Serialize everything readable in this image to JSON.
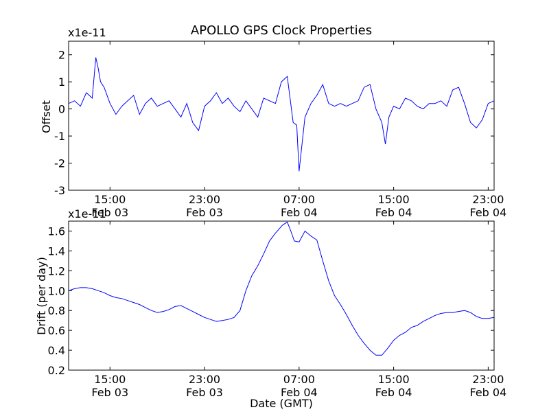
{
  "chart_data": [
    {
      "type": "line",
      "title": "APOLLO GPS Clock Properties",
      "scale_label": "x1e-11",
      "ylabel": "Offset",
      "xlabel": "",
      "x_ticks": [
        {
          "time": "15:00",
          "date": "Feb 03",
          "hours": 15
        },
        {
          "time": "23:00",
          "date": "Feb 03",
          "hours": 23
        },
        {
          "time": "07:00",
          "date": "Feb 04",
          "hours": 31
        },
        {
          "time": "15:00",
          "date": "Feb 04",
          "hours": 39
        },
        {
          "time": "23:00",
          "date": "Feb 04",
          "hours": 47
        }
      ],
      "xlim": [
        11.5,
        47.5
      ],
      "ylim": [
        -3,
        2.5
      ],
      "y_ticks": [
        {
          "value": -3,
          "label": "-3"
        },
        {
          "value": -2,
          "label": "-2"
        },
        {
          "value": -1,
          "label": "-1"
        },
        {
          "value": 0,
          "label": "0"
        },
        {
          "value": 1,
          "label": "1"
        },
        {
          "value": 2,
          "label": "2"
        }
      ],
      "color": "#0000ff",
      "series": [
        {
          "x": [
            11.5,
            12,
            12.5,
            13,
            13.5,
            13.8,
            14,
            14.2,
            14.5,
            15,
            15.5,
            16,
            16.5,
            17,
            17.5,
            18,
            18.5,
            19,
            19.5,
            20,
            20.5,
            21,
            21.5,
            22,
            22.5,
            23,
            23.5,
            24,
            24.5,
            25,
            25.5,
            26,
            26.5,
            27,
            27.5,
            28,
            28.5,
            29,
            29.5,
            30,
            30.5,
            30.8,
            31,
            31.5,
            32,
            32.5,
            33,
            33.5,
            34,
            34.5,
            35,
            35.5,
            36,
            36.5,
            37,
            37.5,
            38,
            38.3,
            38.6,
            39,
            39.5,
            40,
            40.5,
            41,
            41.5,
            42,
            42.5,
            43,
            43.5,
            44,
            44.5,
            45,
            45.5,
            46,
            46.5,
            47,
            47.5
          ],
          "y": [
            0.2,
            0.3,
            0.1,
            0.6,
            0.4,
            1.9,
            1.5,
            1,
            0.8,
            0.2,
            -0.2,
            0.1,
            0.3,
            0.5,
            -0.2,
            0.2,
            0.4,
            0.1,
            0.2,
            0.3,
            0,
            -0.3,
            0.2,
            -0.5,
            -0.8,
            0.1,
            0.3,
            0.6,
            0.2,
            0.4,
            0.1,
            -0.1,
            0.3,
            0,
            -0.3,
            0.4,
            0.3,
            0.2,
            1,
            1.2,
            -0.5,
            -0.6,
            -2.3,
            -0.3,
            0.2,
            0.5,
            0.9,
            0.2,
            0.1,
            0.2,
            0.1,
            0.2,
            0.3,
            0.8,
            0.9,
            0,
            -0.5,
            -1.3,
            -0.3,
            0.1,
            0,
            0.4,
            0.3,
            0.1,
            0,
            0.2,
            0.2,
            0.3,
            0.1,
            0.7,
            0.8,
            0.2,
            -0.5,
            -0.7,
            -0.4,
            0.2,
            0.3
          ]
        }
      ]
    },
    {
      "type": "line",
      "title": "",
      "scale_label": "x1e-11",
      "ylabel": "Drift (per day)",
      "xlabel": "Date (GMT)",
      "x_ticks": [
        {
          "time": "15:00",
          "date": "Feb 03",
          "hours": 15
        },
        {
          "time": "23:00",
          "date": "Feb 03",
          "hours": 23
        },
        {
          "time": "07:00",
          "date": "Feb 04",
          "hours": 31
        },
        {
          "time": "15:00",
          "date": "Feb 04",
          "hours": 39
        },
        {
          "time": "23:00",
          "date": "Feb 04",
          "hours": 47
        }
      ],
      "xlim": [
        11.5,
        47.5
      ],
      "ylim": [
        0.2,
        1.7
      ],
      "y_ticks": [
        {
          "value": 0.2,
          "label": "0.2"
        },
        {
          "value": 0.4,
          "label": "0.4"
        },
        {
          "value": 0.6,
          "label": "0.6"
        },
        {
          "value": 0.8,
          "label": "0.8"
        },
        {
          "value": 1.0,
          "label": "1.0"
        },
        {
          "value": 1.2,
          "label": "1.2"
        },
        {
          "value": 1.4,
          "label": "1.4"
        },
        {
          "value": 1.6,
          "label": "1.6"
        }
      ],
      "color": "#0000ff",
      "series": [
        {
          "x": [
            11.5,
            12,
            12.5,
            13,
            13.5,
            14,
            14.5,
            15,
            15.5,
            16,
            16.5,
            17,
            17.5,
            18,
            18.5,
            19,
            19.5,
            20,
            20.5,
            21,
            21.5,
            22,
            22.5,
            23,
            23.5,
            24,
            24.5,
            25,
            25.5,
            26,
            26.5,
            27,
            27.5,
            28,
            28.5,
            29,
            29.3,
            29.6,
            30,
            30.3,
            30.6,
            31,
            31.5,
            32,
            32.5,
            33,
            33.5,
            34,
            34.5,
            35,
            35.5,
            36,
            36.5,
            37,
            37.5,
            38,
            38.5,
            39,
            39.5,
            40,
            40.5,
            41,
            41.5,
            42,
            42.5,
            43,
            43.5,
            44,
            44.5,
            45,
            45.5,
            46,
            46.5,
            47,
            47.5
          ],
          "y": [
            1.0,
            1.02,
            1.03,
            1.03,
            1.02,
            1.0,
            0.98,
            0.95,
            0.93,
            0.92,
            0.9,
            0.88,
            0.86,
            0.83,
            0.8,
            0.78,
            0.79,
            0.81,
            0.84,
            0.85,
            0.82,
            0.79,
            0.76,
            0.73,
            0.71,
            0.69,
            0.7,
            0.71,
            0.73,
            0.8,
            1.0,
            1.15,
            1.25,
            1.37,
            1.5,
            1.58,
            1.62,
            1.66,
            1.69,
            1.6,
            1.5,
            1.49,
            1.6,
            1.55,
            1.51,
            1.3,
            1.1,
            0.95,
            0.86,
            0.76,
            0.65,
            0.55,
            0.47,
            0.4,
            0.35,
            0.35,
            0.42,
            0.5,
            0.55,
            0.58,
            0.63,
            0.65,
            0.69,
            0.72,
            0.75,
            0.77,
            0.78,
            0.78,
            0.79,
            0.8,
            0.78,
            0.74,
            0.72,
            0.72,
            0.73
          ]
        }
      ]
    }
  ]
}
